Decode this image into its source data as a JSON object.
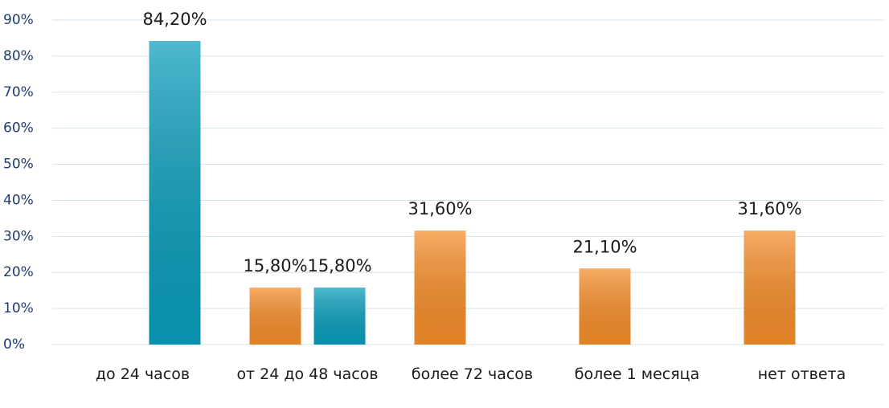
{
  "chart_data": {
    "type": "bar",
    "categories": [
      "до 24 часов",
      "от 24 до 48 часов",
      "более 72 часов",
      "более 1 месяца",
      "нет ответа"
    ],
    "series": [
      {
        "color": "#0a9dbb",
        "values": [
          null,
          15.8,
          31.6,
          21.1,
          31.6
        ],
        "value_labels": [
          null,
          "15,80%",
          "31,60%",
          "21,10%",
          "31,60%"
        ],
        "slot": 0
      },
      {
        "color": "#0a9dbb",
        "values": [
          84.2,
          15.8,
          null,
          null,
          null
        ],
        "value_labels": [
          "84,20%",
          "15,80%",
          null,
          null,
          null
        ]
      }
    ],
    "ylim": [
      0,
      90
    ],
    "yticks": [
      {
        "value": 0,
        "label": "0%"
      },
      {
        "value": 10,
        "label": "10%"
      },
      {
        "value": 20,
        "label": "20%"
      },
      {
        "value": 30,
        "label": "30%"
      },
      {
        "value": 40,
        "label": "40%"
      },
      {
        "value": 50,
        "label": "50%"
      },
      {
        "value": 60,
        "label": "60%"
      },
      {
        "value": 70,
        "label": "70%"
      },
      {
        "value": 80,
        "label": "80%"
      },
      {
        "value": 90,
        "label": "90%"
      }
    ],
    "grid": true
  }
}
